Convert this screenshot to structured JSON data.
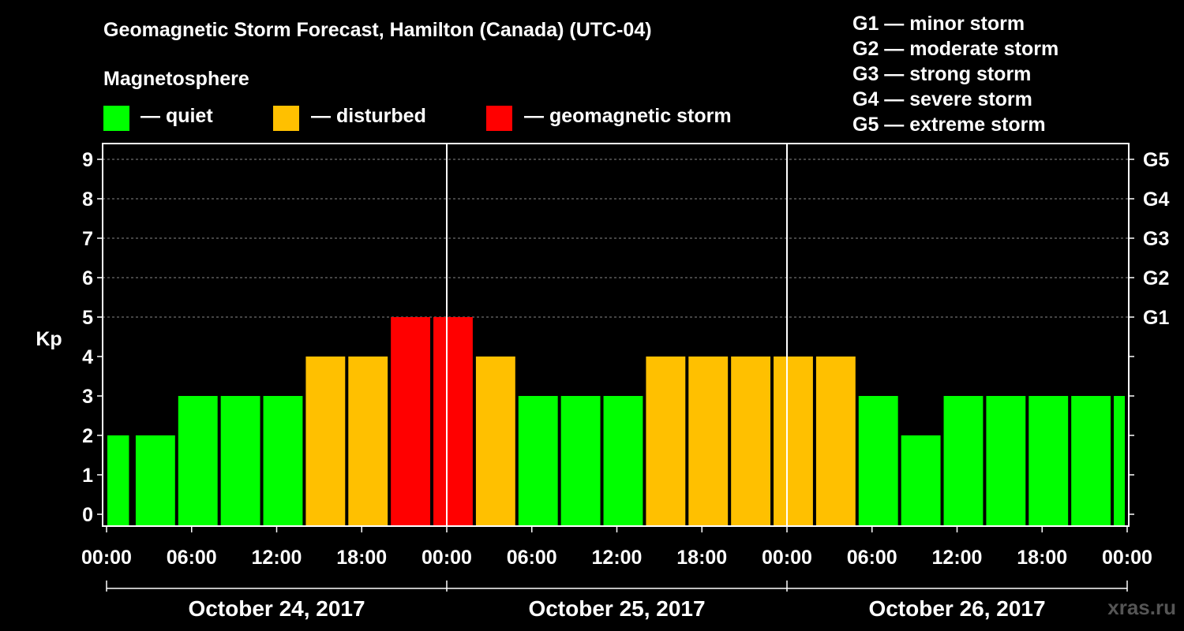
{
  "title": "Geomagnetic Storm Forecast, Hamilton (Canada) (UTC-04)",
  "legend": {
    "heading": "Magnetosphere",
    "items": [
      {
        "label": "— quiet",
        "color": "#00ff00"
      },
      {
        "label": "— disturbed",
        "color": "#ffc000"
      },
      {
        "label": "— geomagnetic storm",
        "color": "#ff0000"
      }
    ]
  },
  "storm_levels": [
    "G1 — minor storm",
    "G2 — moderate storm",
    "G3 — strong storm",
    "G4 — severe storm",
    "G5 — extreme storm"
  ],
  "watermark": "xras.ru",
  "chart_data": {
    "type": "bar",
    "title": "Geomagnetic Storm Forecast, Hamilton (Canada) (UTC-04)",
    "ylabel": "Kp",
    "ylim": [
      0,
      9
    ],
    "yticks": [
      "0",
      "1",
      "2",
      "3",
      "4",
      "5",
      "6",
      "7",
      "8",
      "9"
    ],
    "right_axis_labels": [
      {
        "kp": 5,
        "label": "G1"
      },
      {
        "kp": 6,
        "label": "G2"
      },
      {
        "kp": 7,
        "label": "G3"
      },
      {
        "kp": 8,
        "label": "G4"
      },
      {
        "kp": 9,
        "label": "G5"
      }
    ],
    "xtick_labels": [
      "00:00",
      "06:00",
      "12:00",
      "18:00",
      "00:00",
      "06:00",
      "12:00",
      "18:00",
      "00:00",
      "06:00",
      "12:00",
      "18:00",
      "00:00"
    ],
    "dates": [
      "October 24, 2017",
      "October 25, 2017",
      "October 26, 2017"
    ],
    "hours_total": 72,
    "bars": [
      {
        "start_hour": 0,
        "end_hour": 1.75,
        "kp": 2
      },
      {
        "start_hour": 2,
        "end_hour": 5,
        "kp": 2
      },
      {
        "start_hour": 5,
        "end_hour": 8,
        "kp": 3
      },
      {
        "start_hour": 8,
        "end_hour": 11,
        "kp": 3
      },
      {
        "start_hour": 11,
        "end_hour": 14,
        "kp": 3
      },
      {
        "start_hour": 14,
        "end_hour": 17,
        "kp": 4
      },
      {
        "start_hour": 17,
        "end_hour": 20,
        "kp": 4
      },
      {
        "start_hour": 20,
        "end_hour": 23,
        "kp": 5
      },
      {
        "start_hour": 23,
        "end_hour": 26,
        "kp": 5
      },
      {
        "start_hour": 26,
        "end_hour": 29,
        "kp": 4
      },
      {
        "start_hour": 29,
        "end_hour": 32,
        "kp": 3
      },
      {
        "start_hour": 32,
        "end_hour": 35,
        "kp": 3
      },
      {
        "start_hour": 35,
        "end_hour": 38,
        "kp": 3
      },
      {
        "start_hour": 38,
        "end_hour": 41,
        "kp": 4
      },
      {
        "start_hour": 41,
        "end_hour": 44,
        "kp": 4
      },
      {
        "start_hour": 44,
        "end_hour": 47,
        "kp": 4
      },
      {
        "start_hour": 47,
        "end_hour": 50,
        "kp": 4
      },
      {
        "start_hour": 50,
        "end_hour": 53,
        "kp": 4
      },
      {
        "start_hour": 53,
        "end_hour": 56,
        "kp": 3
      },
      {
        "start_hour": 56,
        "end_hour": 59,
        "kp": 2
      },
      {
        "start_hour": 59,
        "end_hour": 62,
        "kp": 3
      },
      {
        "start_hour": 62,
        "end_hour": 65,
        "kp": 3
      },
      {
        "start_hour": 65,
        "end_hour": 68,
        "kp": 3
      },
      {
        "start_hour": 68,
        "end_hour": 71,
        "kp": 3
      },
      {
        "start_hour": 71,
        "end_hour": 72,
        "kp": 3
      }
    ],
    "color_rules": {
      "quiet_max_kp": 3,
      "disturbed_kp": 4,
      "storm_min_kp": 5
    }
  }
}
